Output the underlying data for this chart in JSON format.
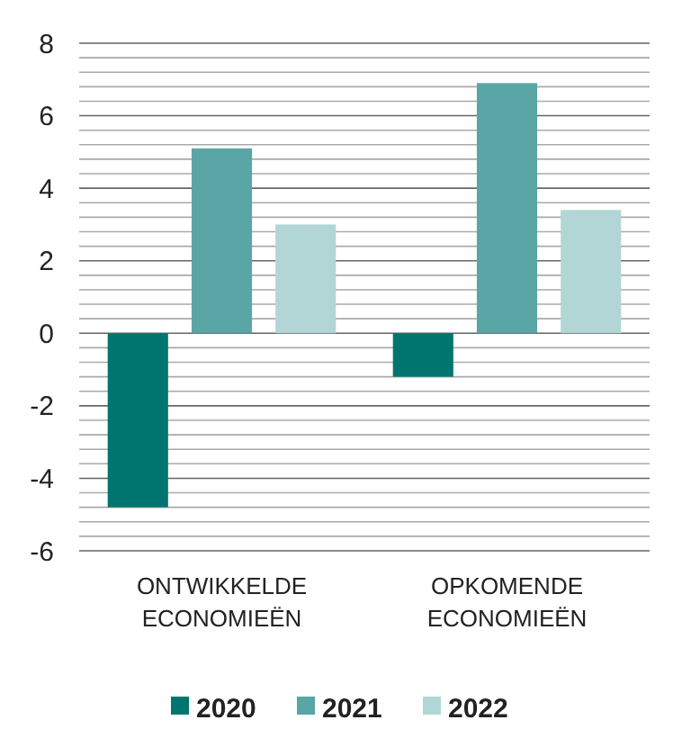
{
  "chart_data": {
    "type": "bar",
    "categories": [
      "ONTWIKKELDE\nECONOMIEËN",
      "OPKOMENDE\nECONOMIEËN"
    ],
    "series": [
      {
        "name": "2020",
        "color": "#00756f",
        "values": [
          -4.8,
          -1.2
        ]
      },
      {
        "name": "2021",
        "color": "#5aa5a6",
        "values": [
          5.1,
          6.9
        ]
      },
      {
        "name": "2022",
        "color": "#b2d6d6",
        "values": [
          3.0,
          3.4
        ]
      }
    ],
    "ylim": [
      -6,
      8
    ],
    "yticks": [
      -6,
      {
        "value": -5.6,
        "label": null
      },
      {
        "value": -5.2,
        "label": null
      },
      {
        "value": -4.8,
        "label": null
      },
      {
        "value": -4.4,
        "label": null
      },
      -4,
      {
        "value": -3.6,
        "label": null
      },
      {
        "value": -3.2,
        "label": null
      },
      {
        "value": -2.8,
        "label": null
      },
      {
        "value": -2.4,
        "label": null
      },
      -2,
      {
        "value": -1.6,
        "label": null
      },
      {
        "value": -1.2,
        "label": null
      },
      {
        "value": -0.8,
        "label": null
      },
      {
        "value": -0.4,
        "label": null
      },
      0,
      {
        "value": 0.4,
        "label": null
      },
      {
        "value": 0.8,
        "label": null
      },
      {
        "value": 1.2,
        "label": null
      },
      {
        "value": 1.6,
        "label": null
      },
      2,
      {
        "value": 2.4,
        "label": null
      },
      {
        "value": 2.8,
        "label": null
      },
      {
        "value": 3.2,
        "label": null
      },
      {
        "value": 3.6,
        "label": null
      },
      4,
      {
        "value": 4.4,
        "label": null
      },
      {
        "value": 4.8,
        "label": null
      },
      {
        "value": 5.2,
        "label": null
      },
      {
        "value": 5.6,
        "label": null
      },
      6,
      {
        "value": 6.4,
        "label": null
      },
      {
        "value": 6.8,
        "label": null
      },
      {
        "value": 7.2,
        "label": null
      },
      {
        "value": 7.6,
        "label": null
      },
      8
    ],
    "grid": true,
    "legend": "bottom"
  }
}
